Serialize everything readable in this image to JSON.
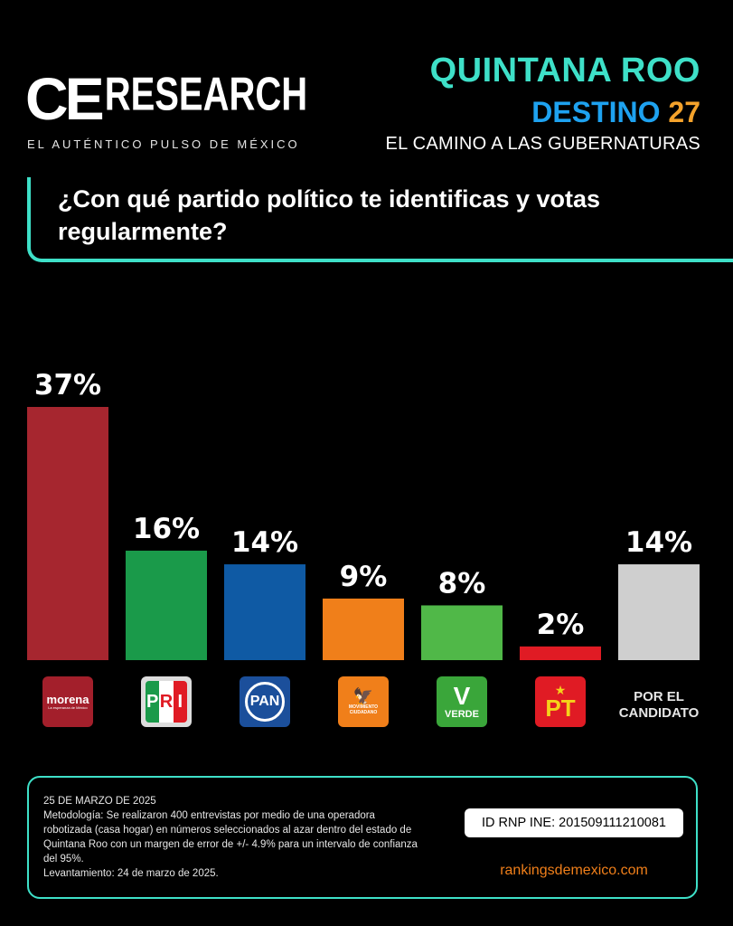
{
  "header": {
    "logo_ce": "CE",
    "logo_research": "RESEARCH",
    "tagline": "EL AUTÉNTICO PULSO DE MÉXICO",
    "state": "QUINTANA ROO",
    "destino_word": "DESTINO",
    "destino_num": "27",
    "subtitle": "EL CAMINO A LAS GUBERNATURAS"
  },
  "question": "¿Con qué partido político te identificas y votas regularmente?",
  "chart_data": {
    "type": "bar",
    "categories": [
      "Morena",
      "PRI",
      "PAN",
      "Movimiento Ciudadano",
      "Verde",
      "PT",
      "POR EL CANDIDATO"
    ],
    "values": [
      37,
      16,
      14,
      9,
      8,
      2,
      14
    ],
    "value_labels": [
      "37%",
      "16%",
      "14%",
      "9%",
      "8%",
      "2%",
      "14%"
    ],
    "colors": [
      "#a6262f",
      "#1a9a4a",
      "#0f5aa4",
      "#f07f1a",
      "#50b848",
      "#e01b24",
      "#cfcfcf"
    ],
    "ylim": [
      0,
      37
    ],
    "grid": false,
    "legend": "none"
  },
  "parties": {
    "morena": {
      "name": "morena",
      "tagline": "La esperanza de México"
    },
    "pri": {
      "letters": [
        "P",
        "R",
        "I"
      ]
    },
    "pan": {
      "name": "PAN"
    },
    "mc": {
      "name": "MOVIMIENTO CIUDADANO"
    },
    "verde": {
      "letter": "V",
      "name": "VERDE"
    },
    "pt": {
      "name": "PT"
    },
    "candidato": {
      "label": "POR EL CANDIDATO"
    }
  },
  "footer": {
    "date": "25 DE MARZO DE 2025",
    "methodology": "Metodología: Se realizaron 400 entrevistas por medio de una operadora robotizada (casa hogar) en números seleccionados al azar dentro del estado de Quintana Roo con un margen de error de +/- 4.9% para un intervalo de confianza del 95%.",
    "levantamiento": "Levantamiento: 24 de marzo de 2025.",
    "rnp": "ID RNP INE: 201509111210081",
    "website": "rankingsdemexico.com"
  }
}
